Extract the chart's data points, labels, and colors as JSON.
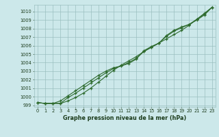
{
  "x": [
    0,
    1,
    2,
    3,
    4,
    5,
    6,
    7,
    8,
    9,
    10,
    11,
    12,
    13,
    14,
    15,
    16,
    17,
    18,
    19,
    20,
    21,
    22,
    23
  ],
  "line1": [
    999.3,
    999.2,
    999.2,
    999.2,
    999.5,
    999.9,
    1000.4,
    1001.0,
    1001.7,
    1002.4,
    1003.1,
    1003.7,
    1004.2,
    1004.7,
    1005.3,
    1005.8,
    1006.3,
    1006.8,
    1007.3,
    1007.8,
    1008.4,
    1009.1,
    1009.8,
    1010.5
  ],
  "line2": [
    999.3,
    999.2,
    999.2,
    999.2,
    999.9,
    1000.4,
    1001.0,
    1001.6,
    1002.2,
    1002.8,
    1003.3,
    1003.6,
    1004.0,
    1004.5,
    1005.3,
    1005.8,
    1006.3,
    1007.1,
    1007.7,
    1008.1,
    1008.5,
    1009.1,
    1009.7,
    1010.5
  ],
  "line3": [
    999.3,
    999.2,
    999.2,
    999.5,
    1000.1,
    1000.7,
    1001.3,
    1001.9,
    1002.5,
    1003.0,
    1003.4,
    1003.6,
    1003.9,
    1004.4,
    1005.4,
    1005.9,
    1006.3,
    1007.2,
    1007.8,
    1008.2,
    1008.5,
    1009.0,
    1009.6,
    1010.5
  ],
  "line_color": "#2d6a2d",
  "bg_color": "#cce8ea",
  "grid_color": "#9bbfbf",
  "label_color": "#1a3a1a",
  "title": "Graphe pression niveau de la mer (hPa)",
  "ylim": [
    998.8,
    1010.8
  ],
  "yticks": [
    999,
    1000,
    1001,
    1002,
    1003,
    1004,
    1005,
    1006,
    1007,
    1008,
    1009,
    1010
  ],
  "xlim": [
    -0.5,
    23.5
  ],
  "xticks": [
    0,
    1,
    2,
    3,
    4,
    5,
    6,
    7,
    8,
    9,
    10,
    11,
    12,
    13,
    14,
    15,
    16,
    17,
    18,
    19,
    20,
    21,
    22,
    23
  ]
}
